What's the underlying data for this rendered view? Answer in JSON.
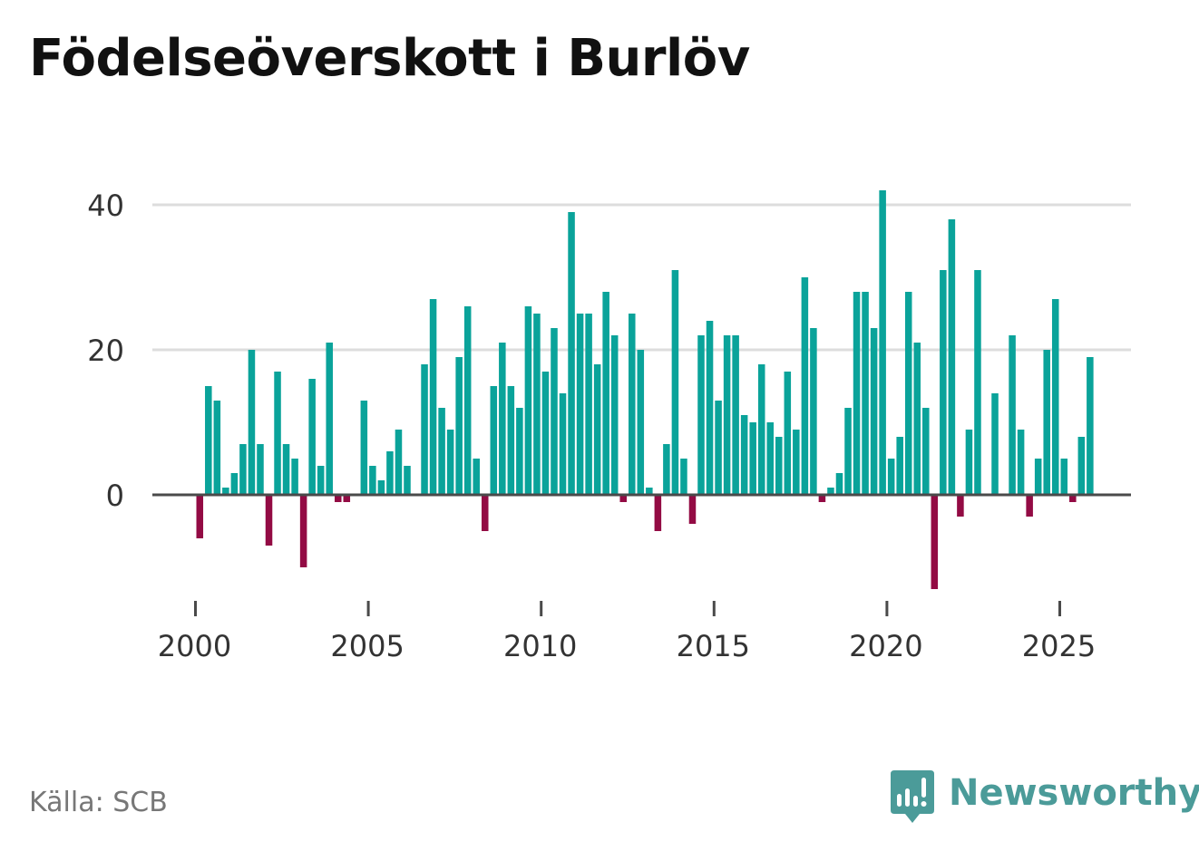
{
  "title": "Födelseöverskott i Burlöv",
  "source": "Källa: SCB",
  "brand": {
    "name": "Newsworthy",
    "icon": "newsworthy-logo-icon",
    "color": "#4b9b99"
  },
  "colors": {
    "positive": "#0aa39a",
    "negative": "#930b44",
    "grid": "#dddddd",
    "baseline": "#4a4a4a",
    "tick_text": "#333333"
  },
  "chart_data": {
    "type": "bar",
    "title": "Födelseöverskott i Burlöv",
    "xlabel": "",
    "ylabel": "",
    "ylim": [
      -14,
      42
    ],
    "y_ticks": [
      0,
      20,
      40
    ],
    "x_ticks": [
      2000,
      2005,
      2010,
      2015,
      2020,
      2025
    ],
    "xlim": [
      1999.6,
      2026.9
    ],
    "grid": true,
    "legend": "none",
    "start_year": 2000,
    "periods_per_year": 4,
    "values": [
      -6,
      15,
      13,
      1,
      3,
      7,
      20,
      7,
      -7,
      17,
      7,
      5,
      -10,
      16,
      4,
      21,
      -1,
      -1,
      0,
      13,
      4,
      2,
      6,
      9,
      4,
      0,
      18,
      27,
      12,
      9,
      19,
      26,
      5,
      -5,
      15,
      21,
      15,
      12,
      26,
      25,
      17,
      23,
      14,
      39,
      25,
      25,
      18,
      28,
      22,
      -1,
      25,
      20,
      1,
      -5,
      7,
      31,
      5,
      -4,
      22,
      24,
      13,
      22,
      22,
      11,
      10,
      18,
      10,
      8,
      17,
      9,
      30,
      23,
      -1,
      1,
      3,
      12,
      28,
      28,
      23,
      42,
      5,
      8,
      28,
      21,
      12,
      -13,
      31,
      38,
      -3,
      9,
      31,
      0,
      14,
      0,
      22,
      9,
      -3,
      5,
      20,
      27,
      5,
      -1,
      8,
      19
    ]
  }
}
